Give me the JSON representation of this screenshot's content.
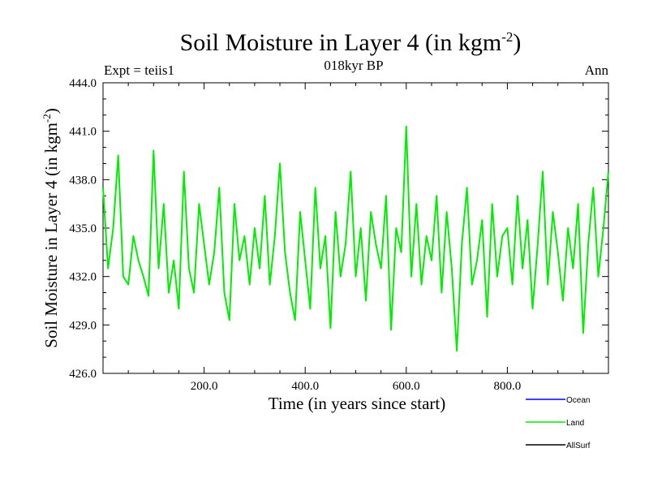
{
  "chart_data": {
    "type": "line",
    "title": "Soil Moisture in Layer 4 (in kgm",
    "title_sup": "-2",
    "title_end": ")",
    "subtitle_left": "Expt = teiis1",
    "subtitle_center": "018kyr BP",
    "subtitle_right": "Ann",
    "xlabel": "Time (in years since start)",
    "ylabel": "Soil Moisture in Layer 4 (in kgm",
    "ylabel_sup": "-2",
    "ylabel_end": ")",
    "xlim": [
      0,
      1000
    ],
    "ylim": [
      426,
      444
    ],
    "xticks": [
      200,
      400,
      600,
      800
    ],
    "xtick_labels": [
      "200.0",
      "400.0",
      "600.0",
      "800.0"
    ],
    "yticks": [
      426,
      429,
      432,
      435,
      438,
      441,
      444
    ],
    "ytick_labels": [
      "426.0",
      "429.0",
      "432.0",
      "435.0",
      "438.0",
      "441.0",
      "444.0"
    ],
    "grid": false,
    "legend_position": "bottom-right",
    "series": [
      {
        "name": "Ocean",
        "color": "#0000ff",
        "x": [],
        "values": []
      },
      {
        "name": "Land",
        "color": "#00ee00",
        "x": [
          0,
          10,
          20,
          30,
          40,
          50,
          60,
          70,
          80,
          90,
          100,
          110,
          120,
          130,
          140,
          150,
          160,
          170,
          180,
          190,
          200,
          210,
          220,
          230,
          240,
          250,
          260,
          270,
          280,
          290,
          300,
          310,
          320,
          330,
          340,
          350,
          360,
          370,
          380,
          390,
          400,
          410,
          420,
          430,
          440,
          450,
          460,
          470,
          480,
          490,
          500,
          510,
          520,
          530,
          540,
          550,
          560,
          570,
          580,
          590,
          600,
          610,
          620,
          630,
          640,
          650,
          660,
          670,
          680,
          690,
          700,
          710,
          720,
          730,
          740,
          750,
          760,
          770,
          780,
          790,
          800,
          810,
          820,
          830,
          840,
          850,
          860,
          870,
          880,
          890,
          900,
          910,
          920,
          930,
          940,
          950,
          960,
          970,
          980,
          990,
          1000
        ],
        "values": [
          437.5,
          432.5,
          435.0,
          439.5,
          432.0,
          431.5,
          434.5,
          433.0,
          432.0,
          430.8,
          439.8,
          432.5,
          436.5,
          431.0,
          433.0,
          430.0,
          438.5,
          432.5,
          431.0,
          436.5,
          434.0,
          431.5,
          433.5,
          437.5,
          431.0,
          429.3,
          436.5,
          433.0,
          434.5,
          431.5,
          435.0,
          432.5,
          437.0,
          431.5,
          434.5,
          439.0,
          433.5,
          431.0,
          429.3,
          436.0,
          433.0,
          430.0,
          437.5,
          432.5,
          434.5,
          428.8,
          436.0,
          432.0,
          434.0,
          438.5,
          432.0,
          435.0,
          430.5,
          436.0,
          434.0,
          432.5,
          437.0,
          428.7,
          435.0,
          433.5,
          441.3,
          432.0,
          436.5,
          431.5,
          434.5,
          433.0,
          437.0,
          431.0,
          436.0,
          432.5,
          427.4,
          434.0,
          437.5,
          431.5,
          433.0,
          435.5,
          429.5,
          436.5,
          432.0,
          434.5,
          435.0,
          431.5,
          437.0,
          432.5,
          435.5,
          430.0,
          434.0,
          438.5,
          431.5,
          436.0,
          433.5,
          430.5,
          435.0,
          432.5,
          436.5,
          428.5,
          434.0,
          437.5,
          432.0,
          435.0,
          438.5
        ]
      },
      {
        "name": "AllSurf",
        "color": "#000000",
        "x": [],
        "values": []
      }
    ]
  }
}
